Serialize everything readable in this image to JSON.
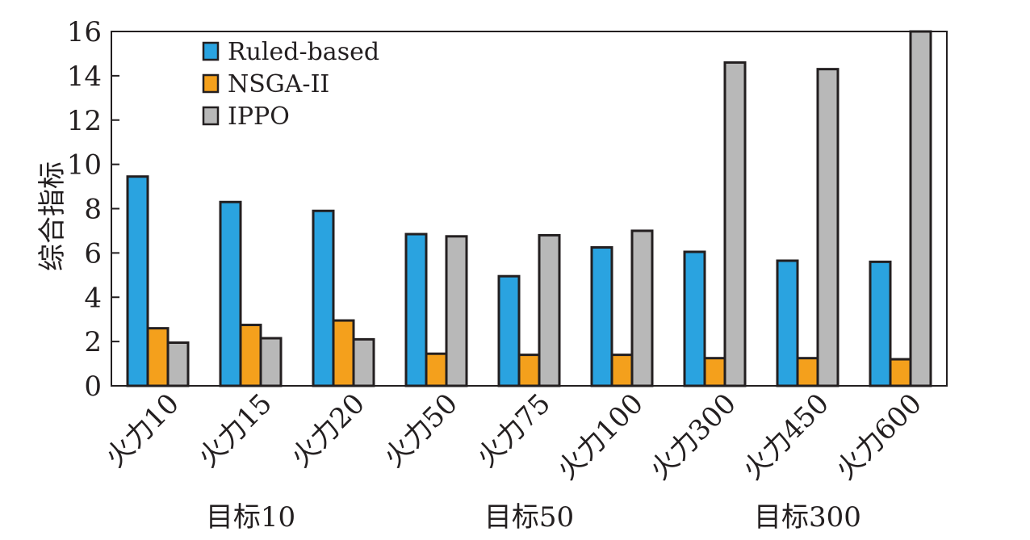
{
  "chart_data": {
    "type": "bar",
    "title": "",
    "xlabel": "",
    "ylabel": "综合指标",
    "ylim": [
      0,
      16
    ],
    "yticks": [
      0,
      2,
      4,
      6,
      8,
      10,
      12,
      14,
      16
    ],
    "grid": false,
    "legend_position": "top-left",
    "categories": [
      "火力10",
      "火力15",
      "火力20",
      "火力50",
      "火力75",
      "火力100",
      "火力300",
      "火力450",
      "火力600"
    ],
    "category_groups": [
      {
        "label": "目标10",
        "span": [
          0,
          2
        ]
      },
      {
        "label": "目标50",
        "span": [
          3,
          5
        ]
      },
      {
        "label": "目标300",
        "span": [
          6,
          8
        ]
      }
    ],
    "series": [
      {
        "name": "Ruled-based",
        "color": "#2aa3e0",
        "values": [
          9.45,
          8.3,
          7.9,
          6.85,
          4.95,
          6.25,
          6.05,
          5.65,
          5.6
        ]
      },
      {
        "name": "NSGA-II",
        "color": "#f4a01c",
        "values": [
          2.6,
          2.75,
          2.95,
          1.45,
          1.4,
          1.4,
          1.25,
          1.25,
          1.2
        ]
      },
      {
        "name": "IPPO",
        "color": "#b8b8b8",
        "values": [
          1.95,
          2.15,
          2.1,
          6.75,
          6.8,
          7.0,
          14.6,
          14.3,
          16.0
        ]
      }
    ],
    "bar_outline_color": "#231f20"
  }
}
